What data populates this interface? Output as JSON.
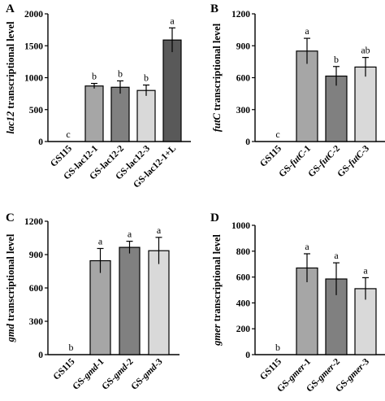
{
  "chart_data": [
    {
      "panel": "A",
      "type": "bar",
      "ylabel": "lac12  transcriptional level",
      "ylabel_italic_part": "lac12",
      "ylim": [
        0,
        2000
      ],
      "yticks": [
        "0",
        "500",
        "1000",
        "1500",
        "2000"
      ],
      "categories": [
        "GS115",
        "GS-lac12-1",
        "GS-lac12-2",
        "GS-lac12-3",
        "GS-lac12-1+L"
      ],
      "values": [
        0,
        870,
        850,
        800,
        1590
      ],
      "errors": [
        0,
        40,
        100,
        85,
        190
      ],
      "letters": [
        "c",
        "b",
        "b",
        "b",
        "a"
      ],
      "colors": [
        "#ffffff",
        "#a6a6a6",
        "#808080",
        "#d9d9d9",
        "#595959"
      ]
    },
    {
      "panel": "B",
      "type": "bar",
      "ylabel": "futC  transcriptional level",
      "ylabel_italic_part": "futC",
      "ylim": [
        0,
        1200
      ],
      "yticks": [
        "0",
        "300",
        "600",
        "900",
        "1200"
      ],
      "categories": [
        "GS115",
        "GS-futC-1",
        "GS-futC-2",
        "GS-futC-3"
      ],
      "values": [
        0,
        850,
        615,
        700
      ],
      "errors": [
        0,
        120,
        90,
        90
      ],
      "letters": [
        "c",
        "a",
        "b",
        "ab"
      ],
      "colors": [
        "#ffffff",
        "#a6a6a6",
        "#808080",
        "#d9d9d9"
      ]
    },
    {
      "panel": "C",
      "type": "bar",
      "ylabel": "gmd  transcriptional level",
      "ylabel_italic_part": "gmd",
      "ylim": [
        0,
        1200
      ],
      "yticks": [
        "0",
        "300",
        "600",
        "900",
        "1200"
      ],
      "categories": [
        "GS115",
        "GS-gmd-1",
        "GS-gmd-2",
        "GS-gmd-3"
      ],
      "values": [
        0,
        845,
        965,
        935
      ],
      "errors": [
        0,
        110,
        55,
        120
      ],
      "letters": [
        "b",
        "a",
        "a",
        "a"
      ],
      "colors": [
        "#ffffff",
        "#a6a6a6",
        "#808080",
        "#d9d9d9"
      ]
    },
    {
      "panel": "D",
      "type": "bar",
      "ylabel": "gmer  transcriptional level",
      "ylabel_italic_part": "gmer",
      "ylim": [
        0,
        1000
      ],
      "yticks": [
        "0",
        "200",
        "400",
        "600",
        "800",
        "1000"
      ],
      "categories": [
        "GS115",
        "GS-gmer-1",
        "GS-gmer-2",
        "GS-gmer-3"
      ],
      "values": [
        0,
        670,
        585,
        510
      ],
      "errors": [
        0,
        110,
        125,
        85
      ],
      "letters": [
        "b",
        "a",
        "a",
        "a"
      ],
      "colors": [
        "#ffffff",
        "#a6a6a6",
        "#808080",
        "#d9d9d9"
      ]
    }
  ]
}
